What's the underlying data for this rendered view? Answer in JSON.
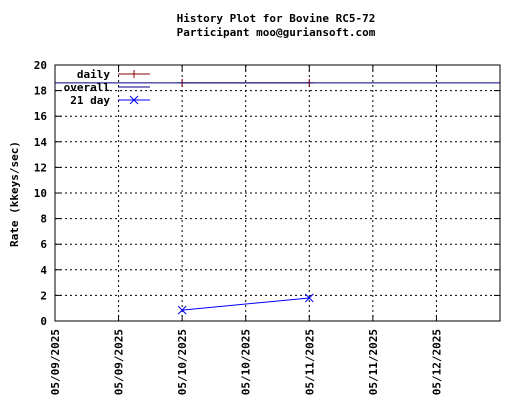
{
  "chart_data": {
    "type": "line",
    "title": "History Plot for Bovine RC5-72",
    "subtitle": "Participant moo@guriansoft.com",
    "xlabel": "",
    "ylabel": "Rate (kkeys/sec)",
    "xlim": [
      "05/09/2025 00:00",
      "05/12/2025 12:00"
    ],
    "ylim": [
      0,
      20
    ],
    "yticks": [
      0,
      2,
      4,
      6,
      8,
      10,
      12,
      14,
      16,
      18,
      20
    ],
    "xticks": [
      {
        "t": "05/09/2025 00:00",
        "label": "05/09/2025"
      },
      {
        "t": "05/09/2025 12:00",
        "label": "05/09/2025"
      },
      {
        "t": "05/10/2025 00:00",
        "label": "05/10/2025"
      },
      {
        "t": "05/10/2025 12:00",
        "label": "05/10/2025"
      },
      {
        "t": "05/11/2025 00:00",
        "label": "05/11/2025"
      },
      {
        "t": "05/11/2025 12:00",
        "label": "05/11/2025"
      },
      {
        "t": "05/12/2025 00:00",
        "label": "05/12/2025"
      }
    ],
    "grid": true,
    "legend_position": "top-left",
    "series": [
      {
        "name": "daily",
        "color": "#8b0000",
        "marker": "plus",
        "points": [
          {
            "x": "05/10/2025 00:00",
            "y": 18.6
          },
          {
            "x": "05/11/2025 00:00",
            "y": 18.6
          }
        ]
      },
      {
        "name": "overall",
        "color": "#000080",
        "marker": "none",
        "points": [
          {
            "x": "05/09/2025 00:00",
            "y": 18.6
          },
          {
            "x": "05/12/2025 12:00",
            "y": 18.6
          }
        ]
      },
      {
        "name": "21 day",
        "color": "#0000ff",
        "marker": "x",
        "points": [
          {
            "x": "05/10/2025 00:00",
            "y": 0.85
          },
          {
            "x": "05/11/2025 00:00",
            "y": 1.8
          }
        ]
      }
    ]
  }
}
